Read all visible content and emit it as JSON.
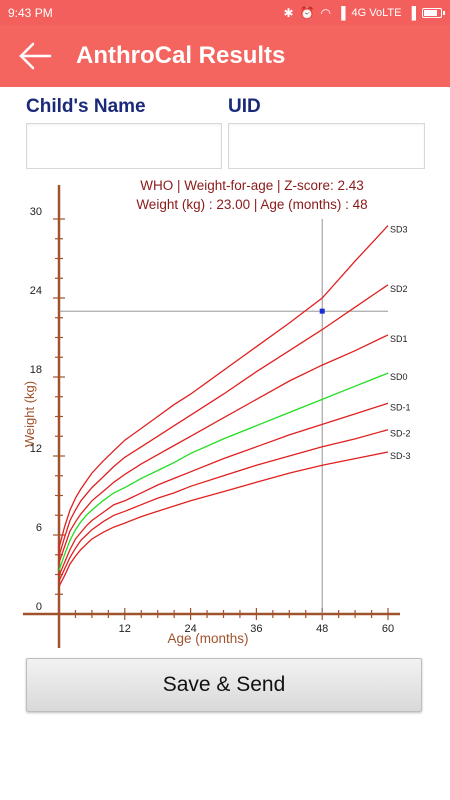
{
  "status_bar": {
    "time": "9:43 PM",
    "network": "4G VoLTE",
    "icons": [
      "bluetooth-icon",
      "alarm-icon",
      "wifi-icon",
      "signal-icon",
      "battery-icon"
    ]
  },
  "app_bar": {
    "title": "AnthroCal Results",
    "back_icon": "arrow-left-icon",
    "background_color": "#f56560"
  },
  "form": {
    "child_name_label": "Child's  Name",
    "child_name_value": "",
    "uid_label": "UID",
    "uid_value": ""
  },
  "chart_data": {
    "type": "line",
    "header_line1": "WHO | Weight-for-age |  Z-score:  2.43",
    "header_line2": "Weight (kg) :  23.00   | Age (months) : 48",
    "xlabel": "Age (months)",
    "ylabel": "Weight (kg)",
    "xlim": [
      0,
      60
    ],
    "ylim": [
      0,
      30
    ],
    "x_ticks": [
      12,
      24,
      36,
      48,
      60
    ],
    "y_ticks": [
      0,
      6,
      12,
      18,
      24,
      30
    ],
    "x": [
      0,
      1,
      2,
      3,
      4,
      5,
      6,
      8,
      10,
      12,
      15,
      18,
      21,
      24,
      30,
      36,
      42,
      48,
      54,
      60
    ],
    "series": [
      {
        "name": "SD3",
        "color": "#e02020",
        "values": [
          5.0,
          6.6,
          7.9,
          8.8,
          9.5,
          10.1,
          10.7,
          11.6,
          12.4,
          13.2,
          14.1,
          15.0,
          15.9,
          16.7,
          18.5,
          20.3,
          22.1,
          24.0,
          26.8,
          29.5
        ]
      },
      {
        "name": "SD2",
        "color": "#e02020",
        "values": [
          4.4,
          5.8,
          7.1,
          7.9,
          8.6,
          9.1,
          9.6,
          10.4,
          11.2,
          11.9,
          12.7,
          13.5,
          14.3,
          15.1,
          16.7,
          18.4,
          20.0,
          21.6,
          23.3,
          25.0
        ]
      },
      {
        "name": "SD1",
        "color": "#e02020",
        "values": [
          3.9,
          5.1,
          6.3,
          7.0,
          7.6,
          8.1,
          8.6,
          9.3,
          10.0,
          10.6,
          11.4,
          12.1,
          12.8,
          13.5,
          14.9,
          16.3,
          17.7,
          18.9,
          20.0,
          21.2
        ]
      },
      {
        "name": "SD0",
        "color": "#22dd22",
        "values": [
          3.3,
          4.5,
          5.6,
          6.4,
          7.0,
          7.5,
          7.9,
          8.6,
          9.2,
          9.6,
          10.3,
          10.9,
          11.5,
          12.2,
          13.3,
          14.3,
          15.3,
          16.3,
          17.3,
          18.3
        ]
      },
      {
        "name": "SD-1",
        "color": "#e02020",
        "values": [
          2.9,
          3.9,
          4.9,
          5.7,
          6.2,
          6.7,
          7.1,
          7.7,
          8.3,
          8.6,
          9.2,
          9.8,
          10.3,
          10.8,
          11.8,
          12.7,
          13.6,
          14.4,
          15.2,
          16.0
        ]
      },
      {
        "name": "SD-2",
        "color": "#e02020",
        "values": [
          2.5,
          3.4,
          4.3,
          5.0,
          5.6,
          6.0,
          6.4,
          7.0,
          7.5,
          7.8,
          8.3,
          8.8,
          9.2,
          9.7,
          10.5,
          11.3,
          12.0,
          12.7,
          13.3,
          14.0
        ]
      },
      {
        "name": "SD-3",
        "color": "#e02020",
        "values": [
          2.1,
          2.9,
          3.8,
          4.4,
          4.9,
          5.3,
          5.7,
          6.2,
          6.6,
          6.9,
          7.4,
          7.8,
          8.2,
          8.6,
          9.3,
          10.0,
          10.7,
          11.3,
          11.8,
          12.3
        ]
      }
    ],
    "marker": {
      "x": 48,
      "y": 23.0,
      "color": "#1a2bd8"
    },
    "grid": false,
    "axis_color": "#a0522d",
    "text_color": "#8b1a1a"
  },
  "actions": {
    "save_send_label": "Save & Send"
  }
}
